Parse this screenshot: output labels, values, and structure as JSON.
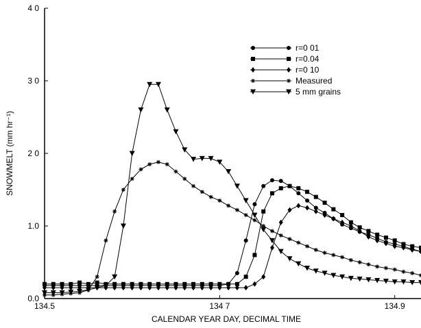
{
  "chart_data": {
    "type": "line",
    "xlabel": "CALENDAR YEAR DAY, DECIMAL TIME",
    "ylabel": "SNOWMELT (mm hr⁻¹)",
    "xlim": [
      134.5,
      134.93
    ],
    "ylim": [
      0,
      4
    ],
    "xticks": [
      134.5,
      {
        "value": 134.7,
        "label": "134 7"
      },
      134.9
    ],
    "yticks": [
      {
        "value": 0,
        "label": "0.0"
      },
      {
        "value": 1,
        "label": "1.0"
      },
      {
        "value": 2,
        "label": "2 0"
      },
      {
        "value": 3,
        "label": "3 0"
      },
      {
        "value": 4,
        "label": "4 0"
      }
    ],
    "x": [
      134.5,
      134.51,
      134.52,
      134.53,
      134.54,
      134.55,
      134.56,
      134.57,
      134.58,
      134.59,
      134.6,
      134.61,
      134.62,
      134.63,
      134.64,
      134.65,
      134.66,
      134.67,
      134.68,
      134.69,
      134.7,
      134.71,
      134.72,
      134.73,
      134.74,
      134.75,
      134.76,
      134.77,
      134.78,
      134.79,
      134.8,
      134.81,
      134.82,
      134.83,
      134.84,
      134.85,
      134.86,
      134.87,
      134.88,
      134.89,
      134.9,
      134.91,
      134.92,
      134.93
    ],
    "series": [
      {
        "name": "r=0 01",
        "color": "#000000",
        "marker": "circle",
        "values": [
          0.18,
          0.18,
          0.18,
          0.18,
          0.18,
          0.18,
          0.18,
          0.18,
          0.18,
          0.18,
          0.18,
          0.18,
          0.18,
          0.18,
          0.18,
          0.18,
          0.18,
          0.18,
          0.18,
          0.18,
          0.18,
          0.2,
          0.35,
          0.8,
          1.3,
          1.55,
          1.63,
          1.62,
          1.55,
          1.45,
          1.35,
          1.25,
          1.18,
          1.1,
          1.02,
          0.97,
          0.92,
          0.88,
          0.83,
          0.78,
          0.75,
          0.72,
          0.68,
          0.65
        ]
      },
      {
        "name": "r=0.04",
        "color": "#000000",
        "marker": "square",
        "values": [
          0.2,
          0.2,
          0.2,
          0.2,
          0.22,
          0.2,
          0.22,
          0.2,
          0.2,
          0.2,
          0.2,
          0.2,
          0.2,
          0.2,
          0.2,
          0.2,
          0.2,
          0.2,
          0.2,
          0.2,
          0.2,
          0.2,
          0.2,
          0.3,
          0.6,
          1.2,
          1.45,
          1.52,
          1.55,
          1.52,
          1.47,
          1.4,
          1.32,
          1.23,
          1.15,
          1.05,
          0.98,
          0.93,
          0.88,
          0.84,
          0.8,
          0.75,
          0.72,
          0.7
        ]
      },
      {
        "name": "r=0 10",
        "color": "#000000",
        "marker": "diamond",
        "values": [
          0.15,
          0.15,
          0.15,
          0.15,
          0.15,
          0.15,
          0.15,
          0.15,
          0.15,
          0.15,
          0.15,
          0.15,
          0.15,
          0.15,
          0.15,
          0.15,
          0.15,
          0.15,
          0.15,
          0.15,
          0.15,
          0.15,
          0.15,
          0.15,
          0.2,
          0.3,
          0.7,
          1.05,
          1.22,
          1.28,
          1.25,
          1.2,
          1.15,
          1.1,
          1.05,
          1.0,
          0.93,
          0.85,
          0.8,
          0.76,
          0.72,
          0.7,
          0.67,
          0.65
        ]
      },
      {
        "name": "Measured",
        "color": "#000000",
        "marker": "asterisk",
        "values": [
          0.05,
          0.05,
          0.06,
          0.07,
          0.08,
          0.12,
          0.3,
          0.8,
          1.2,
          1.5,
          1.65,
          1.78,
          1.85,
          1.88,
          1.85,
          1.75,
          1.65,
          1.55,
          1.47,
          1.4,
          1.35,
          1.28,
          1.22,
          1.15,
          1.08,
          1.0,
          0.93,
          0.87,
          0.82,
          0.77,
          0.72,
          0.67,
          0.63,
          0.6,
          0.57,
          0.53,
          0.5,
          0.47,
          0.44,
          0.42,
          0.4,
          0.37,
          0.35,
          0.32
        ]
      },
      {
        "name": "5 mm grains",
        "color": "#000000",
        "marker": "triangle-down",
        "values": [
          0.08,
          0.08,
          0.08,
          0.09,
          0.1,
          0.12,
          0.15,
          0.18,
          0.3,
          1.0,
          2.0,
          2.6,
          2.95,
          2.95,
          2.6,
          2.3,
          2.05,
          1.92,
          1.93,
          1.93,
          1.88,
          1.75,
          1.55,
          1.35,
          1.15,
          0.95,
          0.8,
          0.65,
          0.55,
          0.48,
          0.42,
          0.38,
          0.35,
          0.32,
          0.3,
          0.28,
          0.27,
          0.26,
          0.25,
          0.24,
          0.23,
          0.23,
          0.22,
          0.22
        ]
      }
    ]
  }
}
